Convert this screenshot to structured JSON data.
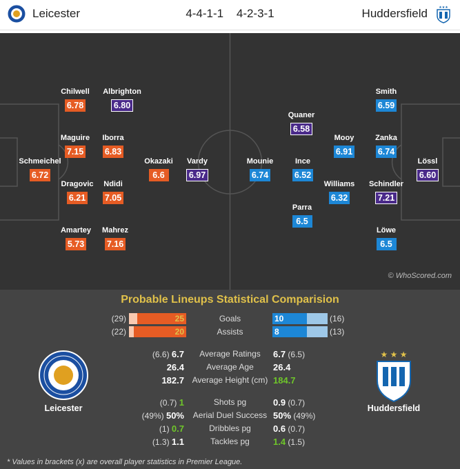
{
  "header": {
    "home_team": "Leicester",
    "away_team": "Huddersfield",
    "home_formation": "4-4-1-1",
    "away_formation": "4-2-3-1"
  },
  "colors": {
    "home_rating": "#e65c24",
    "away_rating": "#1d87d6",
    "best_rating": "#4a2a8a",
    "pitch": "#333333",
    "title": "#e0c14a",
    "highlight": "#6fc62a"
  },
  "home_players": [
    {
      "name": "Schmeichel",
      "rating": "6.72",
      "style": "orange"
    },
    {
      "name": "Chilwell",
      "rating": "6.78",
      "style": "orange"
    },
    {
      "name": "Maguire",
      "rating": "7.15",
      "style": "orange"
    },
    {
      "name": "Dragovic",
      "rating": "6.21",
      "style": "orange"
    },
    {
      "name": "Amartey",
      "rating": "5.73",
      "style": "orange"
    },
    {
      "name": "Albrighton",
      "rating": "6.80",
      "style": "purple"
    },
    {
      "name": "Iborra",
      "rating": "6.83",
      "style": "orange"
    },
    {
      "name": "Ndidi",
      "rating": "7.05",
      "style": "orange"
    },
    {
      "name": "Mahrez",
      "rating": "7.16",
      "style": "orange"
    },
    {
      "name": "Okazaki",
      "rating": "6.6",
      "style": "orange"
    },
    {
      "name": "Vardy",
      "rating": "6.97",
      "style": "purple"
    }
  ],
  "away_players": [
    {
      "name": "Mounie",
      "rating": "6.74",
      "style": "blue"
    },
    {
      "name": "Quaner",
      "rating": "6.58",
      "style": "purple"
    },
    {
      "name": "Ince",
      "rating": "6.52",
      "style": "blue"
    },
    {
      "name": "Parra",
      "rating": "6.5",
      "style": "blue"
    },
    {
      "name": "Mooy",
      "rating": "6.91",
      "style": "blue"
    },
    {
      "name": "Williams",
      "rating": "6.32",
      "style": "blue"
    },
    {
      "name": "Smith",
      "rating": "6.59",
      "style": "blue"
    },
    {
      "name": "Zanka",
      "rating": "6.74",
      "style": "blue"
    },
    {
      "name": "Schindler",
      "rating": "7.21",
      "style": "purple"
    },
    {
      "name": "Löwe",
      "rating": "6.5",
      "style": "blue"
    },
    {
      "name": "Lössl",
      "rating": "6.60",
      "style": "purple"
    }
  ],
  "watermark": "© WhoScored.com",
  "stats": {
    "title": "Probable Lineups Statistical Comparision",
    "goals": {
      "label": "Goals",
      "home": "25",
      "home_overall": "(29)",
      "away": "10",
      "away_overall": "(16)",
      "home_fill": 0.86,
      "away_fill": 0.63
    },
    "assists": {
      "label": "Assists",
      "home": "20",
      "home_overall": "(22)",
      "away": "8",
      "away_overall": "(13)",
      "home_fill": 0.91,
      "away_fill": 0.62
    },
    "avg_ratings": {
      "label": "Average Ratings",
      "home": "6.7",
      "home_overall": "(6.6)",
      "away": "6.7",
      "away_overall": "(6.5)"
    },
    "avg_age": {
      "label": "Average Age",
      "home": "26.4",
      "away": "26.4"
    },
    "avg_height": {
      "label": "Average Height (cm)",
      "home": "182.7",
      "away": "184.7"
    },
    "shots": {
      "label": "Shots pg",
      "home": "1",
      "home_overall": "(0.7)",
      "away": "0.9",
      "away_overall": "(0.7)"
    },
    "aerial": {
      "label": "Aerial Duel Success",
      "home": "50%",
      "home_overall": "(49%)",
      "away": "50%",
      "away_overall": "(49%)"
    },
    "dribbles": {
      "label": "Dribbles pg",
      "home": "0.7",
      "home_overall": "(1)",
      "away": "0.6",
      "away_overall": "(0.7)"
    },
    "tackles": {
      "label": "Tackles pg",
      "home": "1.1",
      "home_overall": "(1.3)",
      "away": "1.4",
      "away_overall": "(1.5)"
    }
  },
  "crest_home_text": "LEICESTER CITY FOOTBALL CLUB",
  "footnote": "* Values in brackets (x) are overall player statistics in Premier League."
}
